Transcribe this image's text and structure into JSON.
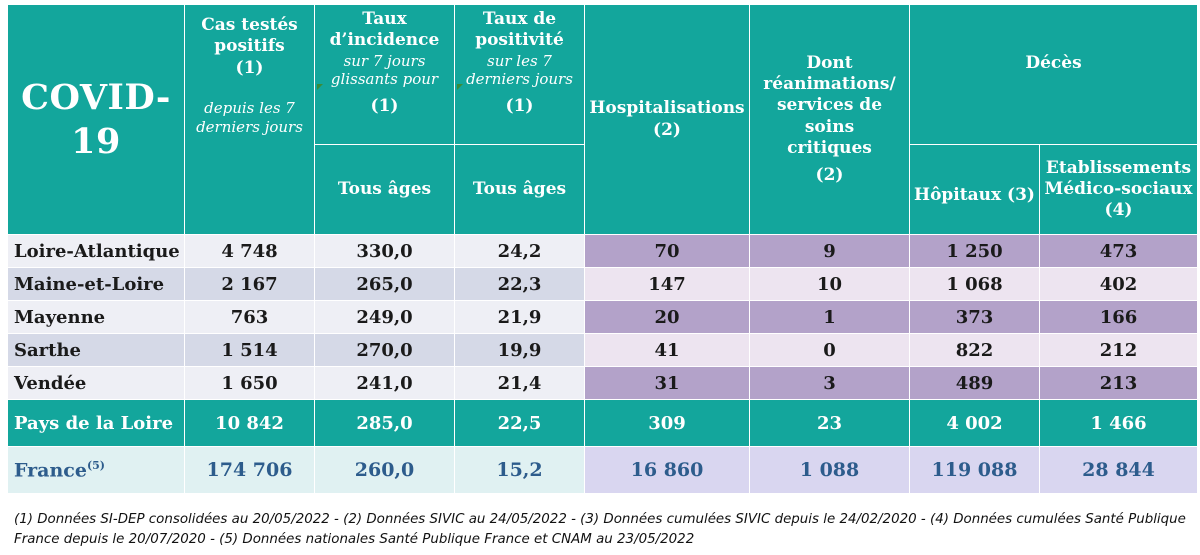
{
  "header": {
    "title": "COVID-19",
    "cas_title": "Cas testés positifs",
    "cas_note": "(1)",
    "cas_sub": "depuis les 7 derniers jours",
    "incidence_title": "Taux d’incidence",
    "incidence_sub": "sur 7 jours glissants pour",
    "incidence_note": "(1)",
    "incidence_age": "Tous âges",
    "positivite_title": "Taux de positivité",
    "positivite_sub": "sur les 7 derniers jours",
    "positivite_note": "(1)",
    "positivite_age": "Tous âges",
    "hosp_title": "Hospitalisations",
    "hosp_note": "(2)",
    "rea_title": "Dont réanimations/ services de soins critiques",
    "rea_note": "(2)",
    "deces_title": "Décès",
    "hopitaux": "Hôpitaux (3)",
    "ems_title": "Etablissements Médico-sociaux",
    "ems_note": "(4)"
  },
  "rows": [
    {
      "name": "Loire-Atlantique",
      "cas": "4 748",
      "incid": "330,0",
      "posit": "24,2",
      "hosp": "70",
      "rea": "9",
      "hop": "1 250",
      "ems": "473"
    },
    {
      "name": "Maine-et-Loire",
      "cas": "2 167",
      "incid": "265,0",
      "posit": "22,3",
      "hosp": "147",
      "rea": "10",
      "hop": "1 068",
      "ems": "402"
    },
    {
      "name": "Mayenne",
      "cas": "763",
      "incid": "249,0",
      "posit": "21,9",
      "hosp": "20",
      "rea": "1",
      "hop": "373",
      "ems": "166"
    },
    {
      "name": "Sarthe",
      "cas": "1 514",
      "incid": "270,0",
      "posit": "19,9",
      "hosp": "41",
      "rea": "0",
      "hop": "822",
      "ems": "212"
    },
    {
      "name": "Vendée",
      "cas": "1 650",
      "incid": "241,0",
      "posit": "21,4",
      "hosp": "31",
      "rea": "3",
      "hop": "489",
      "ems": "213"
    }
  ],
  "region": {
    "name": "Pays de la Loire",
    "cas": "10 842",
    "incid": "285,0",
    "posit": "22,5",
    "hosp": "309",
    "rea": "23",
    "hop": "4 002",
    "ems": "1 466"
  },
  "france": {
    "name": "France",
    "sup": "(5)",
    "cas": "174 706",
    "incid": "260,0",
    "posit": "15,2",
    "hosp": "16 860",
    "rea": "1 088",
    "hop": "119 088",
    "ems": "28 844"
  },
  "footnote": "(1) Données SI-DEP consolidées au 20/05/2022 -  (2) Données SIVIC au 24/05/2022 - (3) Données cumulées SIVIC depuis le 24/02/2020 - (4) Données cumulées Santé Publique France depuis le 20/07/2020 - (5) Données nationales Santé Publique France et CNAM au 23/05/2022",
  "colors": {
    "header": "#13a69c",
    "purple": "#b3a2c9",
    "light_purple": "#ede4f0",
    "grey_blue": "#d5d9e7",
    "france_text": "#2d5c8c"
  }
}
